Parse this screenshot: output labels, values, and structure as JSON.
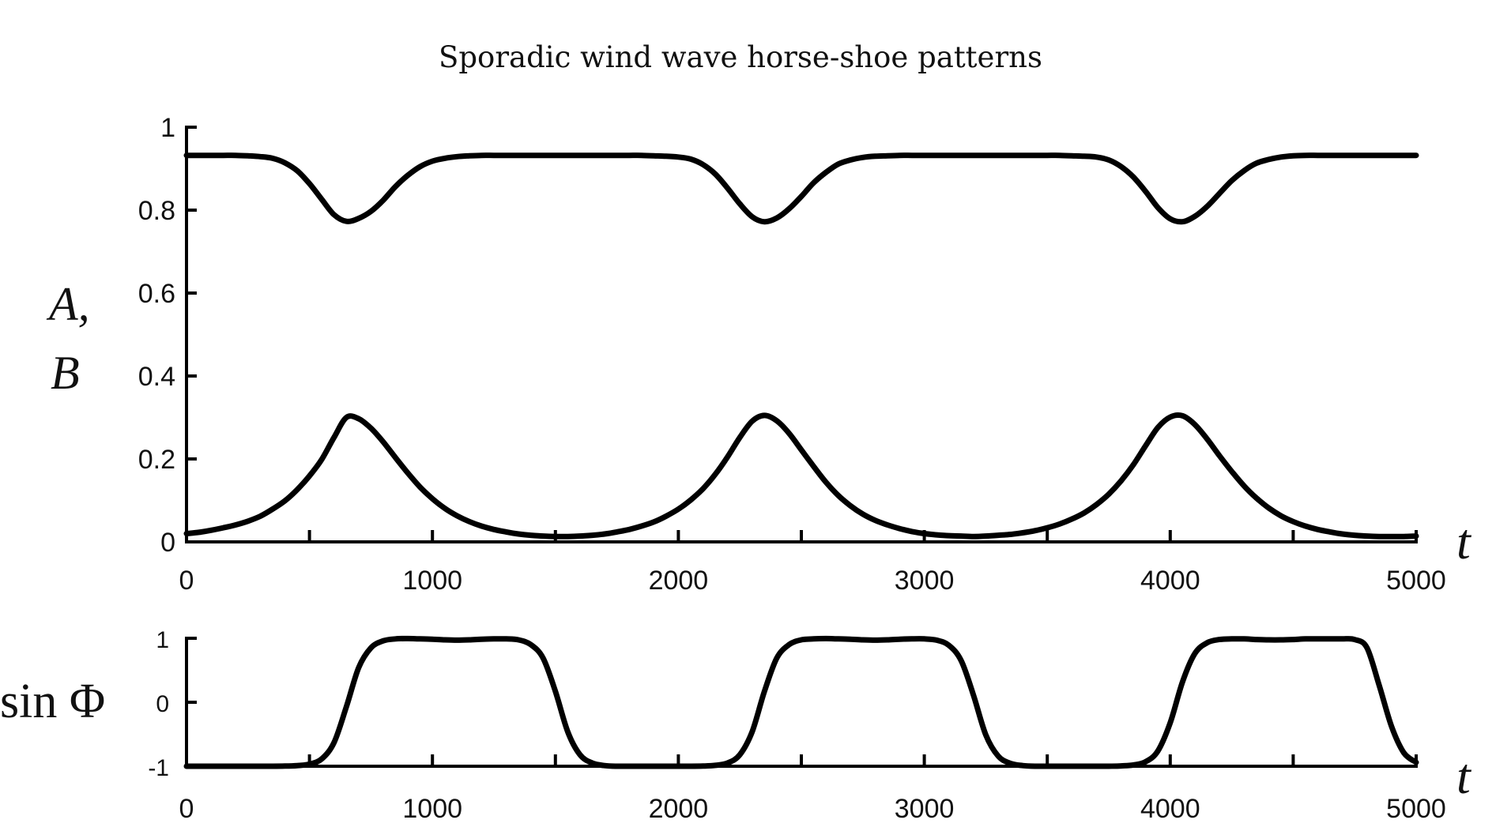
{
  "title": "Sporadic wind wave horse-shoe patterns",
  "colors": {
    "line": "#000000",
    "background": "#ffffff",
    "text": "#111111"
  },
  "chart_data": [
    {
      "type": "line",
      "title": "Sporadic wind wave horse-shoe patterns",
      "xlabel": "t",
      "ylabel": "A, B",
      "ylabel_lines": [
        "A,",
        "B"
      ],
      "xlim": [
        0,
        5000
      ],
      "ylim": [
        0,
        1
      ],
      "xticks": [
        0,
        1000,
        2000,
        3000,
        4000,
        5000
      ],
      "xtick_labels": [
        "0",
        "1000",
        "2000",
        "3000",
        "4000",
        "5000"
      ],
      "xminor_ticks": [
        500,
        1500,
        2500,
        3500,
        4500
      ],
      "yticks": [
        0,
        0.2,
        0.4,
        0.6,
        0.8,
        1
      ],
      "ytick_labels": [
        "0",
        "0.2",
        "0.4",
        "0.6",
        "0.8",
        "1"
      ],
      "grid": false,
      "legend": null,
      "x": [
        0,
        50,
        100,
        150,
        200,
        250,
        300,
        350,
        400,
        450,
        500,
        550,
        600,
        650,
        700,
        750,
        800,
        850,
        900,
        950,
        1000,
        1050,
        1100,
        1150,
        1200,
        1250,
        1300,
        1350,
        1400,
        1450,
        1500,
        1550,
        1600,
        1650,
        1700,
        1750,
        1800,
        1850,
        1900,
        1950,
        2000,
        2050,
        2100,
        2150,
        2200,
        2250,
        2300,
        2350,
        2400,
        2450,
        2500,
        2550,
        2600,
        2650,
        2700,
        2750,
        2800,
        2850,
        2900,
        2950,
        3000,
        3050,
        3100,
        3150,
        3200,
        3250,
        3300,
        3350,
        3400,
        3450,
        3500,
        3550,
        3600,
        3650,
        3700,
        3750,
        3800,
        3850,
        3900,
        3950,
        4000,
        4050,
        4100,
        4150,
        4200,
        4250,
        4300,
        4350,
        4400,
        4450,
        4500,
        4550,
        4600,
        4650,
        4700,
        4750,
        4800,
        4850,
        4900,
        4950,
        5000
      ],
      "series": [
        {
          "name": "A",
          "values": [
            0.932,
            0.932,
            0.932,
            0.932,
            0.932,
            0.931,
            0.929,
            0.925,
            0.914,
            0.895,
            0.864,
            0.826,
            0.789,
            0.773,
            0.78,
            0.797,
            0.824,
            0.857,
            0.884,
            0.905,
            0.918,
            0.925,
            0.929,
            0.931,
            0.932,
            0.932,
            0.932,
            0.932,
            0.932,
            0.932,
            0.932,
            0.932,
            0.932,
            0.932,
            0.932,
            0.932,
            0.932,
            0.932,
            0.931,
            0.93,
            0.928,
            0.923,
            0.91,
            0.887,
            0.853,
            0.815,
            0.784,
            0.772,
            0.781,
            0.803,
            0.833,
            0.866,
            0.891,
            0.911,
            0.921,
            0.927,
            0.93,
            0.931,
            0.932,
            0.932,
            0.932,
            0.932,
            0.932,
            0.932,
            0.932,
            0.932,
            0.932,
            0.932,
            0.932,
            0.932,
            0.932,
            0.932,
            0.931,
            0.93,
            0.928,
            0.921,
            0.905,
            0.88,
            0.845,
            0.806,
            0.779,
            0.772,
            0.785,
            0.809,
            0.84,
            0.871,
            0.895,
            0.913,
            0.922,
            0.928,
            0.931,
            0.932,
            0.932,
            0.932,
            0.932,
            0.932,
            0.932,
            0.932,
            0.932,
            0.932,
            0.932
          ]
        },
        {
          "name": "B",
          "values": [
            0.02,
            0.023,
            0.028,
            0.034,
            0.041,
            0.05,
            0.062,
            0.079,
            0.099,
            0.126,
            0.159,
            0.199,
            0.252,
            0.3,
            0.297,
            0.274,
            0.241,
            0.203,
            0.166,
            0.132,
            0.104,
            0.081,
            0.063,
            0.049,
            0.038,
            0.03,
            0.024,
            0.019,
            0.016,
            0.014,
            0.013,
            0.013,
            0.014,
            0.016,
            0.019,
            0.024,
            0.03,
            0.038,
            0.048,
            0.062,
            0.079,
            0.101,
            0.128,
            0.163,
            0.205,
            0.252,
            0.291,
            0.305,
            0.292,
            0.262,
            0.222,
            0.182,
            0.144,
            0.112,
            0.087,
            0.067,
            0.052,
            0.041,
            0.032,
            0.025,
            0.02,
            0.017,
            0.015,
            0.014,
            0.013,
            0.014,
            0.016,
            0.018,
            0.022,
            0.027,
            0.034,
            0.043,
            0.055,
            0.07,
            0.09,
            0.115,
            0.147,
            0.186,
            0.232,
            0.276,
            0.301,
            0.304,
            0.283,
            0.248,
            0.208,
            0.17,
            0.135,
            0.106,
            0.082,
            0.063,
            0.049,
            0.038,
            0.03,
            0.024,
            0.019,
            0.016,
            0.014,
            0.013,
            0.013,
            0.013,
            0.014
          ]
        }
      ],
      "annotations": {
        "A_dip_minimum": 0.77,
        "B_peak_maximum": 0.305,
        "event_times_approx": [
          665,
          2350,
          4040
        ]
      }
    },
    {
      "type": "line",
      "title": "",
      "xlabel": "t",
      "ylabel": "sin Φ",
      "xlim": [
        0,
        5000
      ],
      "ylim": [
        -1,
        1
      ],
      "xticks": [
        0,
        1000,
        2000,
        3000,
        4000,
        5000
      ],
      "xtick_labels": [
        "0",
        "1000",
        "2000",
        "3000",
        "4000",
        "5000"
      ],
      "xminor_ticks": [
        500,
        1500,
        2500,
        3500,
        4500
      ],
      "yticks": [
        -1,
        0,
        1
      ],
      "ytick_labels": [
        "-1",
        "0",
        "1"
      ],
      "grid": false,
      "legend": null,
      "x": [
        0,
        50,
        100,
        150,
        200,
        250,
        300,
        350,
        400,
        450,
        500,
        550,
        600,
        650,
        700,
        750,
        800,
        850,
        900,
        950,
        1000,
        1050,
        1100,
        1150,
        1200,
        1250,
        1300,
        1350,
        1400,
        1450,
        1500,
        1550,
        1600,
        1650,
        1700,
        1750,
        1800,
        1850,
        1900,
        1950,
        2000,
        2050,
        2100,
        2150,
        2200,
        2250,
        2300,
        2350,
        2400,
        2450,
        2500,
        2550,
        2600,
        2650,
        2700,
        2750,
        2800,
        2850,
        2900,
        2950,
        3000,
        3050,
        3100,
        3150,
        3200,
        3250,
        3300,
        3350,
        3400,
        3450,
        3500,
        3550,
        3600,
        3650,
        3700,
        3750,
        3800,
        3850,
        3900,
        3950,
        4000,
        4050,
        4100,
        4150,
        4200,
        4250,
        4300,
        4350,
        4400,
        4450,
        4500,
        4550,
        4600,
        4650,
        4700,
        4750,
        4800,
        4850,
        4900,
        4950,
        5000
      ],
      "series": [
        {
          "name": "sin Φ",
          "values": [
            -1.0,
            -1.0,
            -1.0,
            -1.0,
            -1.0,
            -1.0,
            -1.0,
            -1.0,
            -0.998,
            -0.99,
            -0.968,
            -0.885,
            -0.63,
            -0.07,
            0.54,
            0.85,
            0.96,
            0.99,
            0.995,
            0.99,
            0.985,
            0.975,
            0.97,
            0.975,
            0.985,
            0.99,
            0.99,
            0.975,
            0.9,
            0.69,
            0.17,
            -0.46,
            -0.82,
            -0.95,
            -0.99,
            -1.0,
            -1.0,
            -1.0,
            -1.0,
            -1.0,
            -1.0,
            -1.0,
            -0.998,
            -0.986,
            -0.95,
            -0.82,
            -0.46,
            0.17,
            0.69,
            0.9,
            0.975,
            0.99,
            0.995,
            0.99,
            0.985,
            0.975,
            0.97,
            0.975,
            0.985,
            0.99,
            0.99,
            0.97,
            0.89,
            0.65,
            0.11,
            -0.51,
            -0.84,
            -0.955,
            -0.99,
            -1.0,
            -1.0,
            -1.0,
            -1.0,
            -1.0,
            -1.0,
            -1.0,
            -0.995,
            -0.98,
            -0.93,
            -0.76,
            -0.32,
            0.32,
            0.76,
            0.93,
            0.98,
            0.99,
            0.99,
            0.98,
            0.975,
            0.975,
            0.98,
            0.99,
            0.99,
            0.99,
            0.99,
            0.98,
            0.85,
            0.26,
            -0.38,
            -0.79,
            -0.94
          ]
        }
      ]
    }
  ]
}
